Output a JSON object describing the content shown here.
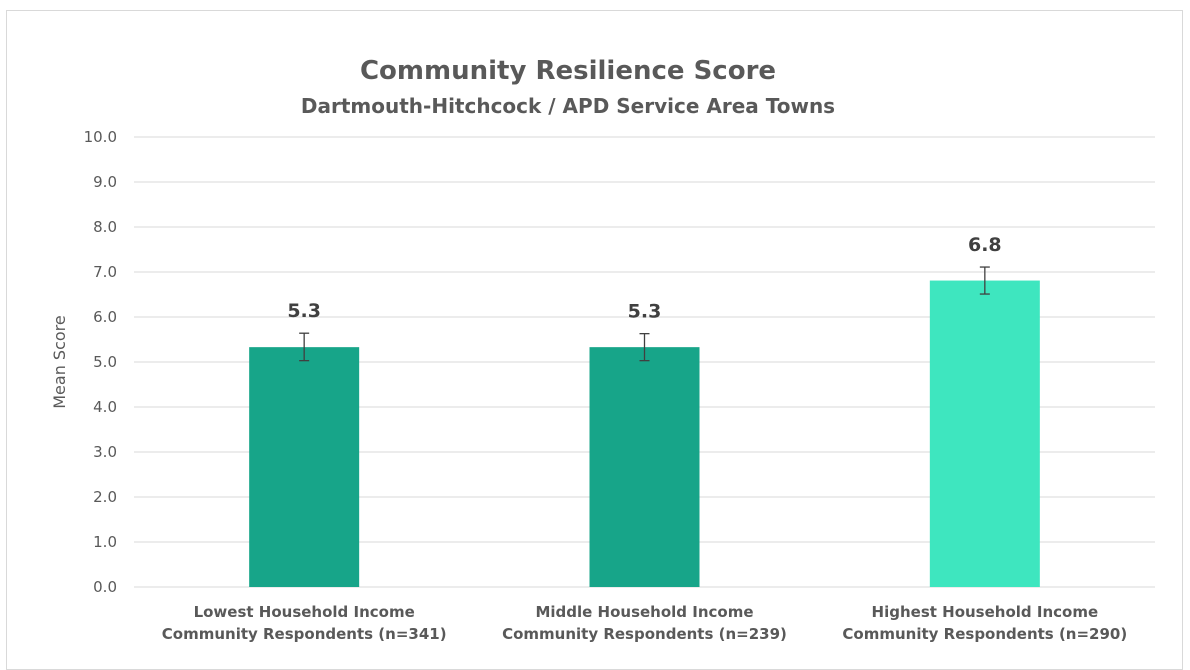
{
  "chart_data": {
    "type": "bar",
    "title": "Community Resilience Score",
    "subtitle": "Dartmouth-Hitchcock / APD Service Area Towns",
    "xlabel": "",
    "ylabel": "Mean Score",
    "ylim": [
      0,
      10
    ],
    "y_ticks": [
      "0.0",
      "1.0",
      "2.0",
      "3.0",
      "4.0",
      "5.0",
      "6.0",
      "7.0",
      "8.0",
      "9.0",
      "10.0"
    ],
    "grid": true,
    "legend": "none",
    "categories": [
      [
        "Lowest Household Income",
        "Community Respondents (n=341)"
      ],
      [
        "Middle Household Income",
        "Community Respondents (n=239)"
      ],
      [
        "Highest Household Income",
        "Community Respondents (n=290)"
      ]
    ],
    "values": [
      5.33,
      5.33,
      6.81
    ],
    "data_labels": [
      "5.3",
      "5.3",
      "6.8"
    ],
    "error_low": [
      5.03,
      5.03,
      6.51
    ],
    "error_high": [
      5.64,
      5.63,
      7.11
    ],
    "colors": [
      "#17a589",
      "#17a589",
      "#3ee6bf"
    ],
    "colors_meta": {
      "gridline": "#d9d9d9",
      "axis_text": "#595959",
      "error_bar": "#404040"
    }
  }
}
